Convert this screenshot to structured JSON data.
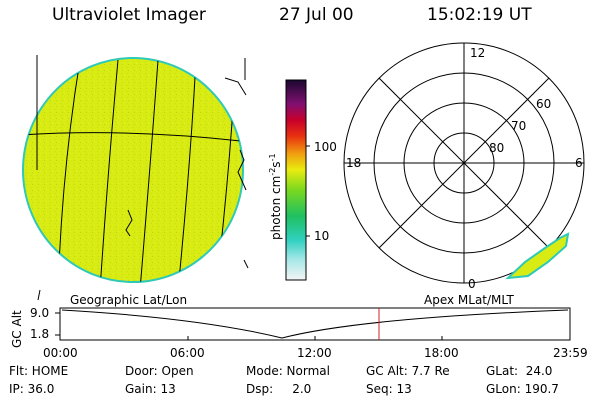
{
  "header": {
    "instrument": "Ultraviolet Imager",
    "date": "27 Jul 00",
    "time": "15:02:19 UT"
  },
  "colorbar": {
    "unit_label": "photon cm",
    "unit_sup1": "-2",
    "unit_mid": "s",
    "unit_sup2": "-1",
    "ticks": [
      "100",
      "10"
    ]
  },
  "polar_plot": {
    "mlt_labels": {
      "top": "12",
      "left": "18",
      "right": "6",
      "bottom": "0"
    },
    "mlat_labels": [
      "60",
      "70",
      "80"
    ]
  },
  "map_labels": {
    "left": "Geographic Lat/Lon",
    "right": "Apex MLat/MLT"
  },
  "altitude_plot": {
    "ylabel": "GC Alt",
    "ytick_top": "9.0",
    "ytick_bottom": "1.8",
    "xticks": [
      "00:00",
      "06:00",
      "12:00",
      "18:00",
      "23:59"
    ]
  },
  "status": {
    "row1": {
      "flt": "Flt: HOME",
      "door": "Door: Open",
      "mode": "Mode: Normal",
      "gcalt": "GC Alt: 7.7 Re",
      "glat": "GLat:  24.0"
    },
    "row2": {
      "ip": "IP: 36.0",
      "gain": "Gain: 13",
      "dsp": "Dsp:     2.0",
      "seq": "Seq: 13",
      "glon": "GLon: 190.7"
    }
  },
  "colors": {
    "earth_fill": "#d8ec14",
    "earth_rim": "#2fc9b6",
    "cursor_line": "#d0202a",
    "background": "#ffffff"
  }
}
